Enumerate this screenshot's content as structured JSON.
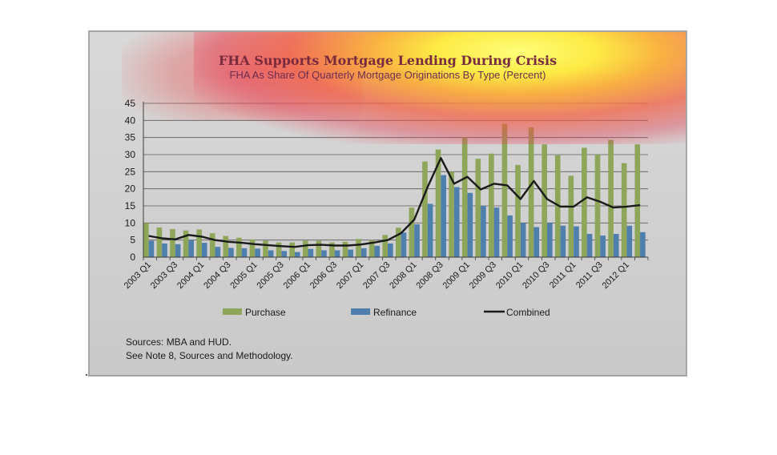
{
  "chart_data": {
    "type": "bar",
    "title": "FHA Supports Mortgage Lending During Crisis",
    "subtitle": "FHA As Share Of Quarterly Mortgage Originations By Type (Percent)",
    "xlabel": "",
    "ylabel": "",
    "ylim": [
      0,
      45
    ],
    "yticks": [
      "0",
      "5",
      "10",
      "15",
      "20",
      "25",
      "30",
      "35",
      "40",
      "45"
    ],
    "grid": true,
    "legend_position": "bottom",
    "categories": [
      "2003 Q1",
      "2003 Q2",
      "2003 Q3",
      "2003 Q4",
      "2004 Q1",
      "2004 Q2",
      "2004 Q3",
      "2004 Q4",
      "2005 Q1",
      "2005 Q2",
      "2005 Q3",
      "2005 Q4",
      "2006 Q1",
      "2006 Q2",
      "2006 Q3",
      "2006 Q4",
      "2007 Q1",
      "2007 Q2",
      "2007 Q3",
      "2007 Q4",
      "2008 Q1",
      "2008 Q2",
      "2008 Q3",
      "2008 Q4",
      "2009 Q1",
      "2009 Q2",
      "2009 Q3",
      "2009 Q4",
      "2010 Q1",
      "2010 Q2",
      "2010 Q3",
      "2010 Q4",
      "2011 Q1",
      "2011 Q2",
      "2011 Q3",
      "2011 Q4",
      "2012 Q1",
      "2012 Q2"
    ],
    "tick_labels": [
      "2003 Q1",
      "2003 Q3",
      "2004 Q1",
      "2004 Q3",
      "2005 Q1",
      "2005 Q3",
      "2006 Q1",
      "2006 Q3",
      "2007 Q1",
      "2007 Q3",
      "2008 Q1",
      "2008 Q3",
      "2009 Q1",
      "2009 Q3",
      "2010 Q1",
      "2010 Q3",
      "2011 Q1",
      "2011 Q3",
      "2012 Q1"
    ],
    "series": [
      {
        "name": "Purchase",
        "type": "bar",
        "color": "#8ea65a",
        "values": [
          10.0,
          8.7,
          8.2,
          7.8,
          8.1,
          7.0,
          6.2,
          5.7,
          5.2,
          4.8,
          4.3,
          4.3,
          4.8,
          4.8,
          4.3,
          4.5,
          5.3,
          5.0,
          6.5,
          8.6,
          14.5,
          28.0,
          31.5,
          25.0,
          35.0,
          28.8,
          30.3,
          39.0,
          27.0,
          38.0,
          33.0,
          29.8,
          23.8,
          32.0,
          30.0,
          34.3,
          27.5,
          33.0
        ]
      },
      {
        "name": "Refinance",
        "type": "bar",
        "color": "#4e7fad",
        "values": [
          4.8,
          4.0,
          3.8,
          5.0,
          4.2,
          3.0,
          2.7,
          2.6,
          2.5,
          2.0,
          1.8,
          1.5,
          2.4,
          2.0,
          2.0,
          2.2,
          2.6,
          3.3,
          4.0,
          7.2,
          9.6,
          15.6,
          24.0,
          20.5,
          18.8,
          15.0,
          14.5,
          12.2,
          10.0,
          8.8,
          10.0,
          9.2,
          9.0,
          6.8,
          6.3,
          6.8,
          9.2,
          7.3
        ]
      },
      {
        "name": "Combined",
        "type": "line",
        "color": "#1a1a1a",
        "values": [
          6.2,
          5.5,
          5.2,
          6.5,
          6.0,
          5.0,
          4.5,
          4.2,
          3.8,
          3.5,
          3.2,
          3.0,
          3.5,
          3.6,
          3.4,
          3.4,
          3.7,
          4.3,
          5.0,
          7.0,
          11.0,
          20.5,
          29.0,
          21.5,
          23.5,
          19.8,
          21.5,
          21.0,
          17.0,
          22.3,
          17.0,
          14.8,
          14.8,
          17.5,
          16.2,
          14.5,
          14.8,
          15.2
        ]
      }
    ]
  },
  "sources": {
    "line1": "Sources:  MBA and HUD.",
    "line2": "See Note 8, Sources and Methodology."
  }
}
